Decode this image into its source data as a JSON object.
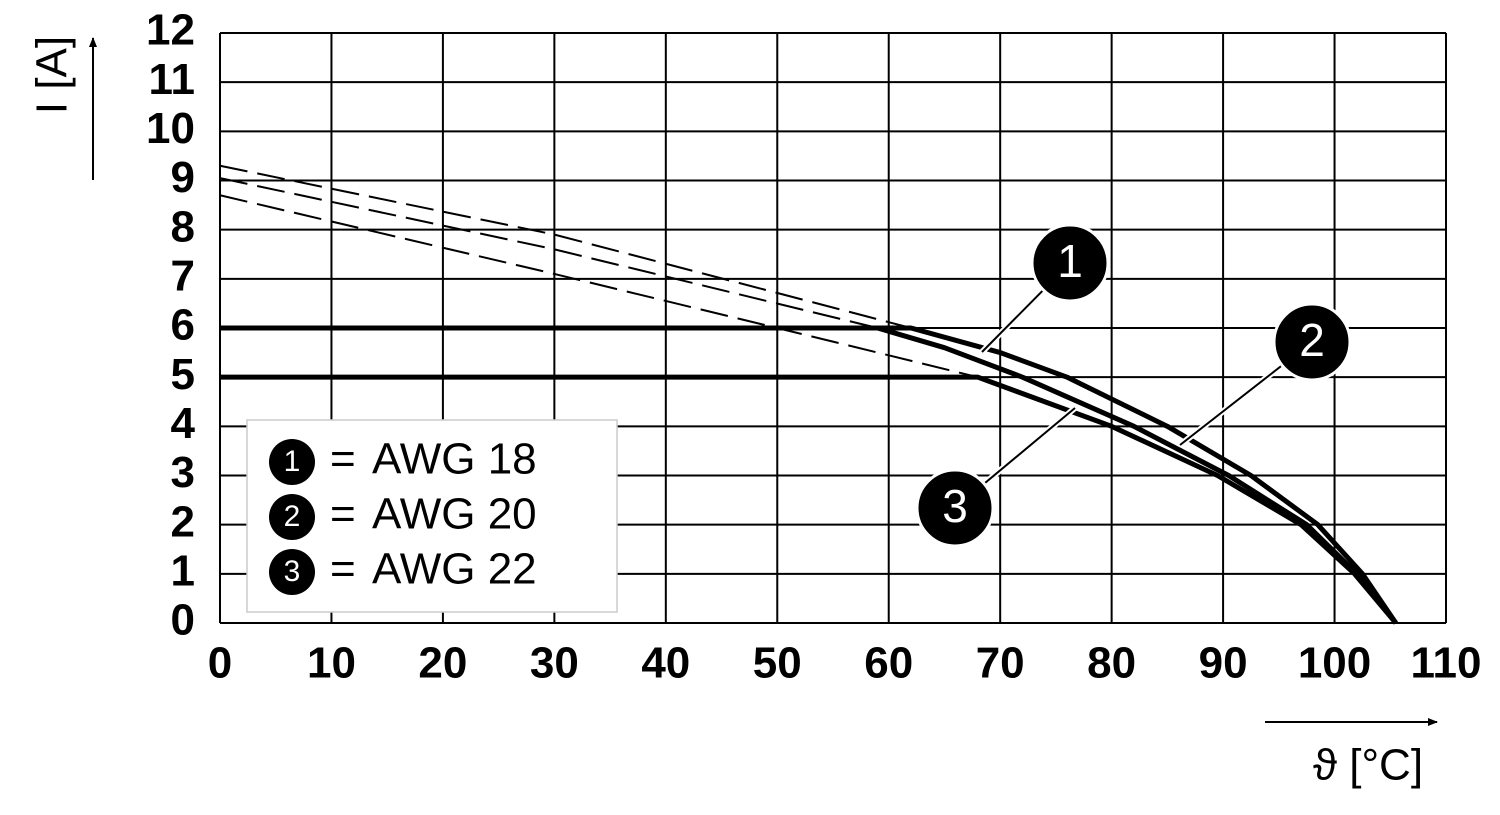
{
  "chart_data": {
    "type": "line",
    "xlabel": "ϑ [°C]",
    "ylabel": "I [A]",
    "xlim": [
      0,
      110
    ],
    "xticks": [
      0,
      10,
      20,
      30,
      40,
      50,
      60,
      70,
      80,
      90,
      100,
      110
    ],
    "ylim": [
      0,
      12
    ],
    "yticks": [
      0,
      1,
      2,
      3,
      4,
      5,
      6,
      7,
      8,
      9,
      10,
      11,
      12
    ],
    "grid": true,
    "legend_separator": "=",
    "series": [
      {
        "name": "AWG 18",
        "label": "1",
        "color": "#000000",
        "x": [
          0,
          62,
          70,
          76,
          85,
          92.5,
          98.5,
          102.5,
          105.5
        ],
        "values": [
          6,
          6,
          5.5,
          5,
          4,
          3,
          2,
          1,
          0
        ],
        "dashed_x": [
          0,
          30,
          62
        ],
        "dashed_values": [
          9.3,
          7.9,
          6
        ]
      },
      {
        "name": "AWG 20",
        "label": "2",
        "color": "#000000",
        "x": [
          0,
          59,
          65,
          72,
          82,
          90.5,
          97.5,
          102,
          105.5
        ],
        "values": [
          6,
          6,
          5.6,
          5,
          4,
          3,
          2,
          1,
          0
        ],
        "dashed_x": [
          0,
          30,
          59
        ],
        "dashed_values": [
          9.05,
          7.6,
          6
        ]
      },
      {
        "name": "AWG 22",
        "label": "3",
        "color": "#000000",
        "x": [
          0,
          68,
          80,
          89.5,
          97,
          101.8,
          105.5
        ],
        "values": [
          5,
          5,
          4,
          3,
          2,
          1,
          0
        ],
        "dashed_x": [
          0,
          30,
          50,
          68
        ],
        "dashed_values": [
          8.7,
          7.1,
          6,
          5
        ]
      }
    ]
  }
}
